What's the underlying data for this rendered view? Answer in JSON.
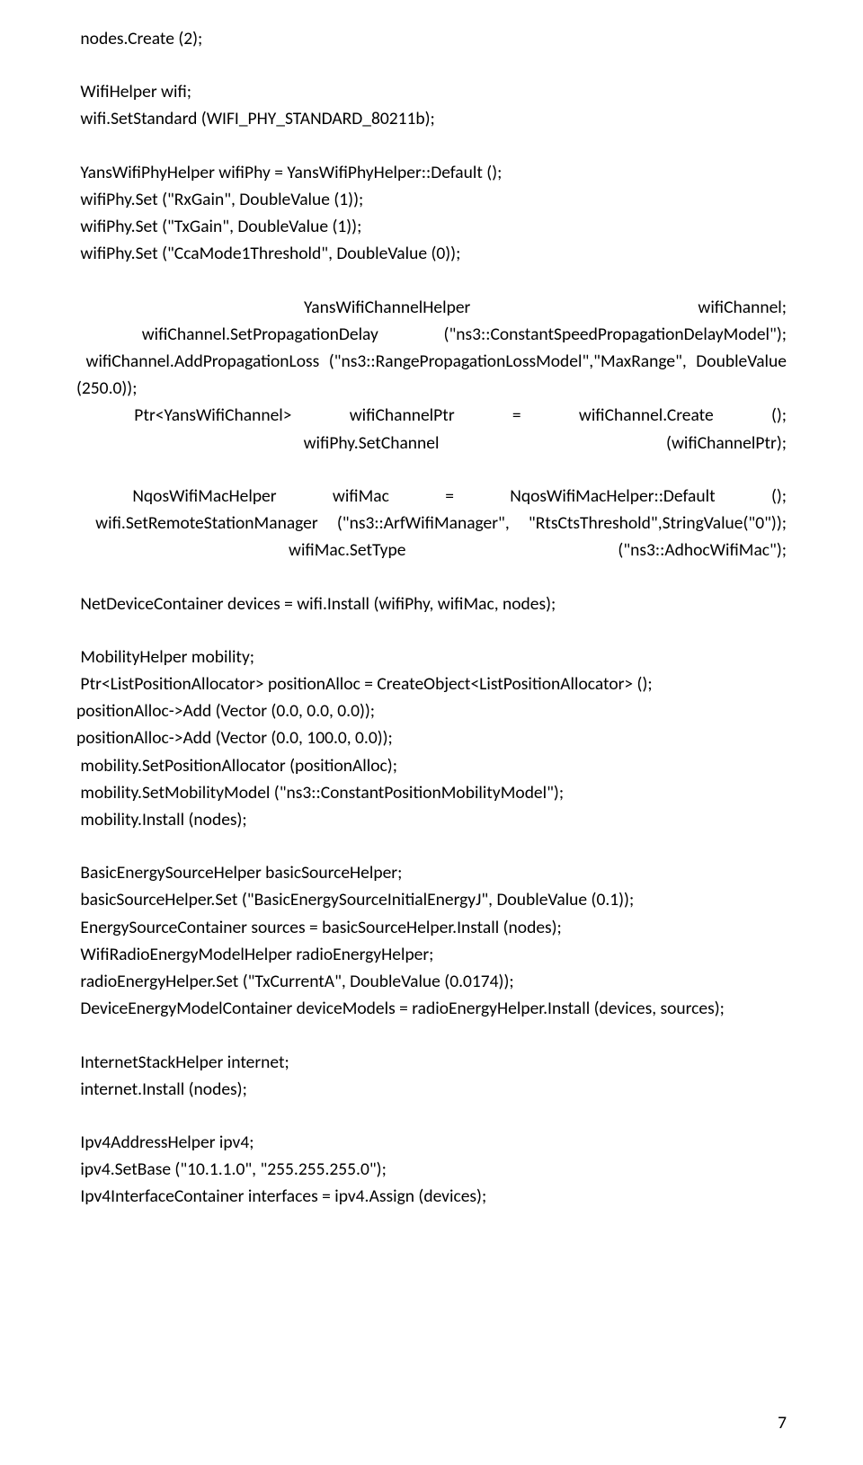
{
  "paragraphs": [
    {
      "lines": [
        " nodes.Create (2);"
      ]
    },
    {
      "lines": [
        " WifiHelper wifi;",
        " wifi.SetStandard (WIFI_PHY_STANDARD_80211b);"
      ]
    },
    {
      "lines": [
        " YansWifiPhyHelper wifiPhy = YansWifiPhyHelper::Default ();",
        " wifiPhy.Set (\"RxGain\", DoubleValue (1));",
        " wifiPhy.Set (\"TxGain\", DoubleValue (1));",
        " wifiPhy.Set (\"CcaMode1Threshold\", DoubleValue (0));"
      ]
    },
    {
      "lines": [
        " YansWifiChannelHelper wifiChannel;",
        " wifiChannel.SetPropagationDelay (\"ns3::ConstantSpeedPropagationDelayModel\");",
        " wifiChannel.AddPropagationLoss (\"ns3::RangePropagationLossModel\",\"MaxRange\", DoubleValue (250.0));",
        " Ptr<YansWifiChannel> wifiChannelPtr = wifiChannel.Create ();",
        " wifiPhy.SetChannel (wifiChannelPtr);"
      ]
    },
    {
      "lines": [
        " NqosWifiMacHelper wifiMac = NqosWifiMacHelper::Default ();",
        " wifi.SetRemoteStationManager (\"ns3::ArfWifiManager\", \"RtsCtsThreshold\",StringValue(\"0\"));",
        " wifiMac.SetType (\"ns3::AdhocWifiMac\");"
      ]
    },
    {
      "lines": [
        " NetDeviceContainer devices = wifi.Install (wifiPhy, wifiMac, nodes);"
      ]
    },
    {
      "lines": [
        " MobilityHelper mobility;",
        " Ptr<ListPositionAllocator> positionAlloc = CreateObject<ListPositionAllocator> ();",
        "positionAlloc->Add (Vector (0.0, 0.0, 0.0));",
        "positionAlloc->Add (Vector (0.0, 100.0, 0.0));",
        " mobility.SetPositionAllocator (positionAlloc);",
        " mobility.SetMobilityModel (\"ns3::ConstantPositionMobilityModel\");",
        " mobility.Install (nodes);"
      ]
    },
    {
      "lines": [
        " BasicEnergySourceHelper basicSourceHelper;",
        " basicSourceHelper.Set (\"BasicEnergySourceInitialEnergyJ\", DoubleValue (0.1));",
        " EnergySourceContainer sources = basicSourceHelper.Install (nodes);",
        " WifiRadioEnergyModelHelper radioEnergyHelper;",
        " radioEnergyHelper.Set (\"TxCurrentA\", DoubleValue (0.0174));",
        " DeviceEnergyModelContainer deviceModels = radioEnergyHelper.Install (devices, sources);"
      ]
    },
    {
      "lines": [
        " InternetStackHelper internet;",
        " internet.Install (nodes);"
      ]
    },
    {
      "lines": [
        " Ipv4AddressHelper ipv4;",
        " ipv4.SetBase (\"10.1.1.0\", \"255.255.255.0\");",
        " Ipv4InterfaceContainer interfaces = ipv4.Assign (devices);"
      ]
    }
  ],
  "justified_paragraphs": [
    3,
    4
  ],
  "page_number": "7",
  "colors": {
    "text": "#000000",
    "background": "#ffffff"
  },
  "font": {
    "family": "Calibri",
    "size_pt": 15,
    "line_height": 1.55
  }
}
